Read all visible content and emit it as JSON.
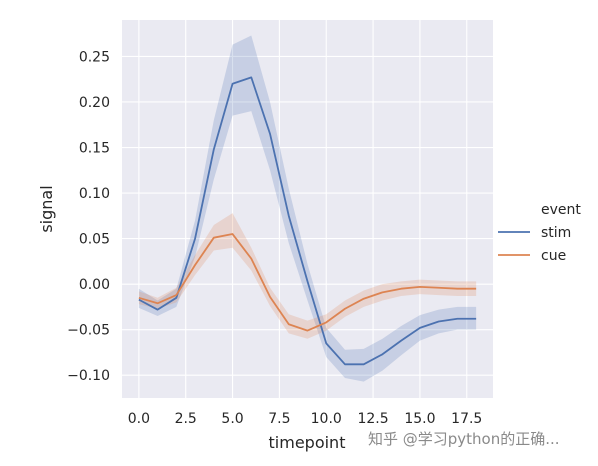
{
  "chart_data": {
    "type": "line",
    "xlabel": "timepoint",
    "ylabel": "signal",
    "xlim": [
      -0.9,
      18.9
    ],
    "ylim": [
      -0.125,
      0.29
    ],
    "x_ticks": [
      "0.0",
      "2.5",
      "5.0",
      "7.5",
      "10.0",
      "12.5",
      "15.0",
      "17.5"
    ],
    "y_ticks": [
      "−0.10",
      "−0.05",
      "0.00",
      "0.05",
      "0.10",
      "0.15",
      "0.20",
      "0.25"
    ],
    "grid": true,
    "legend": {
      "title": "event",
      "placement": "right"
    },
    "x": [
      0,
      1,
      2,
      3,
      4,
      5,
      6,
      7,
      8,
      9,
      10,
      11,
      12,
      13,
      14,
      15,
      16,
      17,
      18
    ],
    "series": [
      {
        "name": "stim",
        "color": "#4c72b0",
        "values": [
          -0.017,
          -0.028,
          -0.015,
          0.05,
          0.148,
          0.22,
          0.227,
          0.165,
          0.075,
          0.003,
          -0.065,
          -0.088,
          -0.088,
          -0.077,
          -0.062,
          -0.048,
          -0.041,
          -0.038,
          -0.038
        ],
        "ci_low": [
          -0.026,
          -0.035,
          -0.025,
          0.03,
          0.115,
          0.185,
          0.19,
          0.125,
          0.045,
          -0.018,
          -0.08,
          -0.103,
          -0.107,
          -0.095,
          -0.078,
          -0.062,
          -0.054,
          -0.05,
          -0.05
        ],
        "ci_high": [
          -0.005,
          -0.018,
          -0.005,
          0.07,
          0.18,
          0.263,
          0.273,
          0.2,
          0.105,
          0.022,
          -0.048,
          -0.072,
          -0.071,
          -0.06,
          -0.046,
          -0.034,
          -0.028,
          -0.025,
          -0.025
        ]
      },
      {
        "name": "cue",
        "color": "#dd8452",
        "values": [
          -0.015,
          -0.021,
          -0.012,
          0.021,
          0.051,
          0.055,
          0.028,
          -0.014,
          -0.044,
          -0.051,
          -0.042,
          -0.027,
          -0.016,
          -0.009,
          -0.005,
          -0.003,
          -0.004,
          -0.005,
          -0.005
        ],
        "ci_low": [
          -0.022,
          -0.027,
          -0.02,
          0.01,
          0.037,
          0.04,
          0.015,
          -0.024,
          -0.054,
          -0.06,
          -0.051,
          -0.036,
          -0.025,
          -0.018,
          -0.013,
          -0.011,
          -0.012,
          -0.013,
          -0.013
        ],
        "ci_high": [
          -0.008,
          -0.015,
          -0.004,
          0.032,
          0.065,
          0.078,
          0.04,
          -0.004,
          -0.033,
          -0.04,
          -0.033,
          -0.018,
          -0.007,
          0.0,
          0.003,
          0.005,
          0.004,
          0.003,
          0.003
        ]
      }
    ]
  },
  "watermark": "知乎 @学习python的正确..."
}
